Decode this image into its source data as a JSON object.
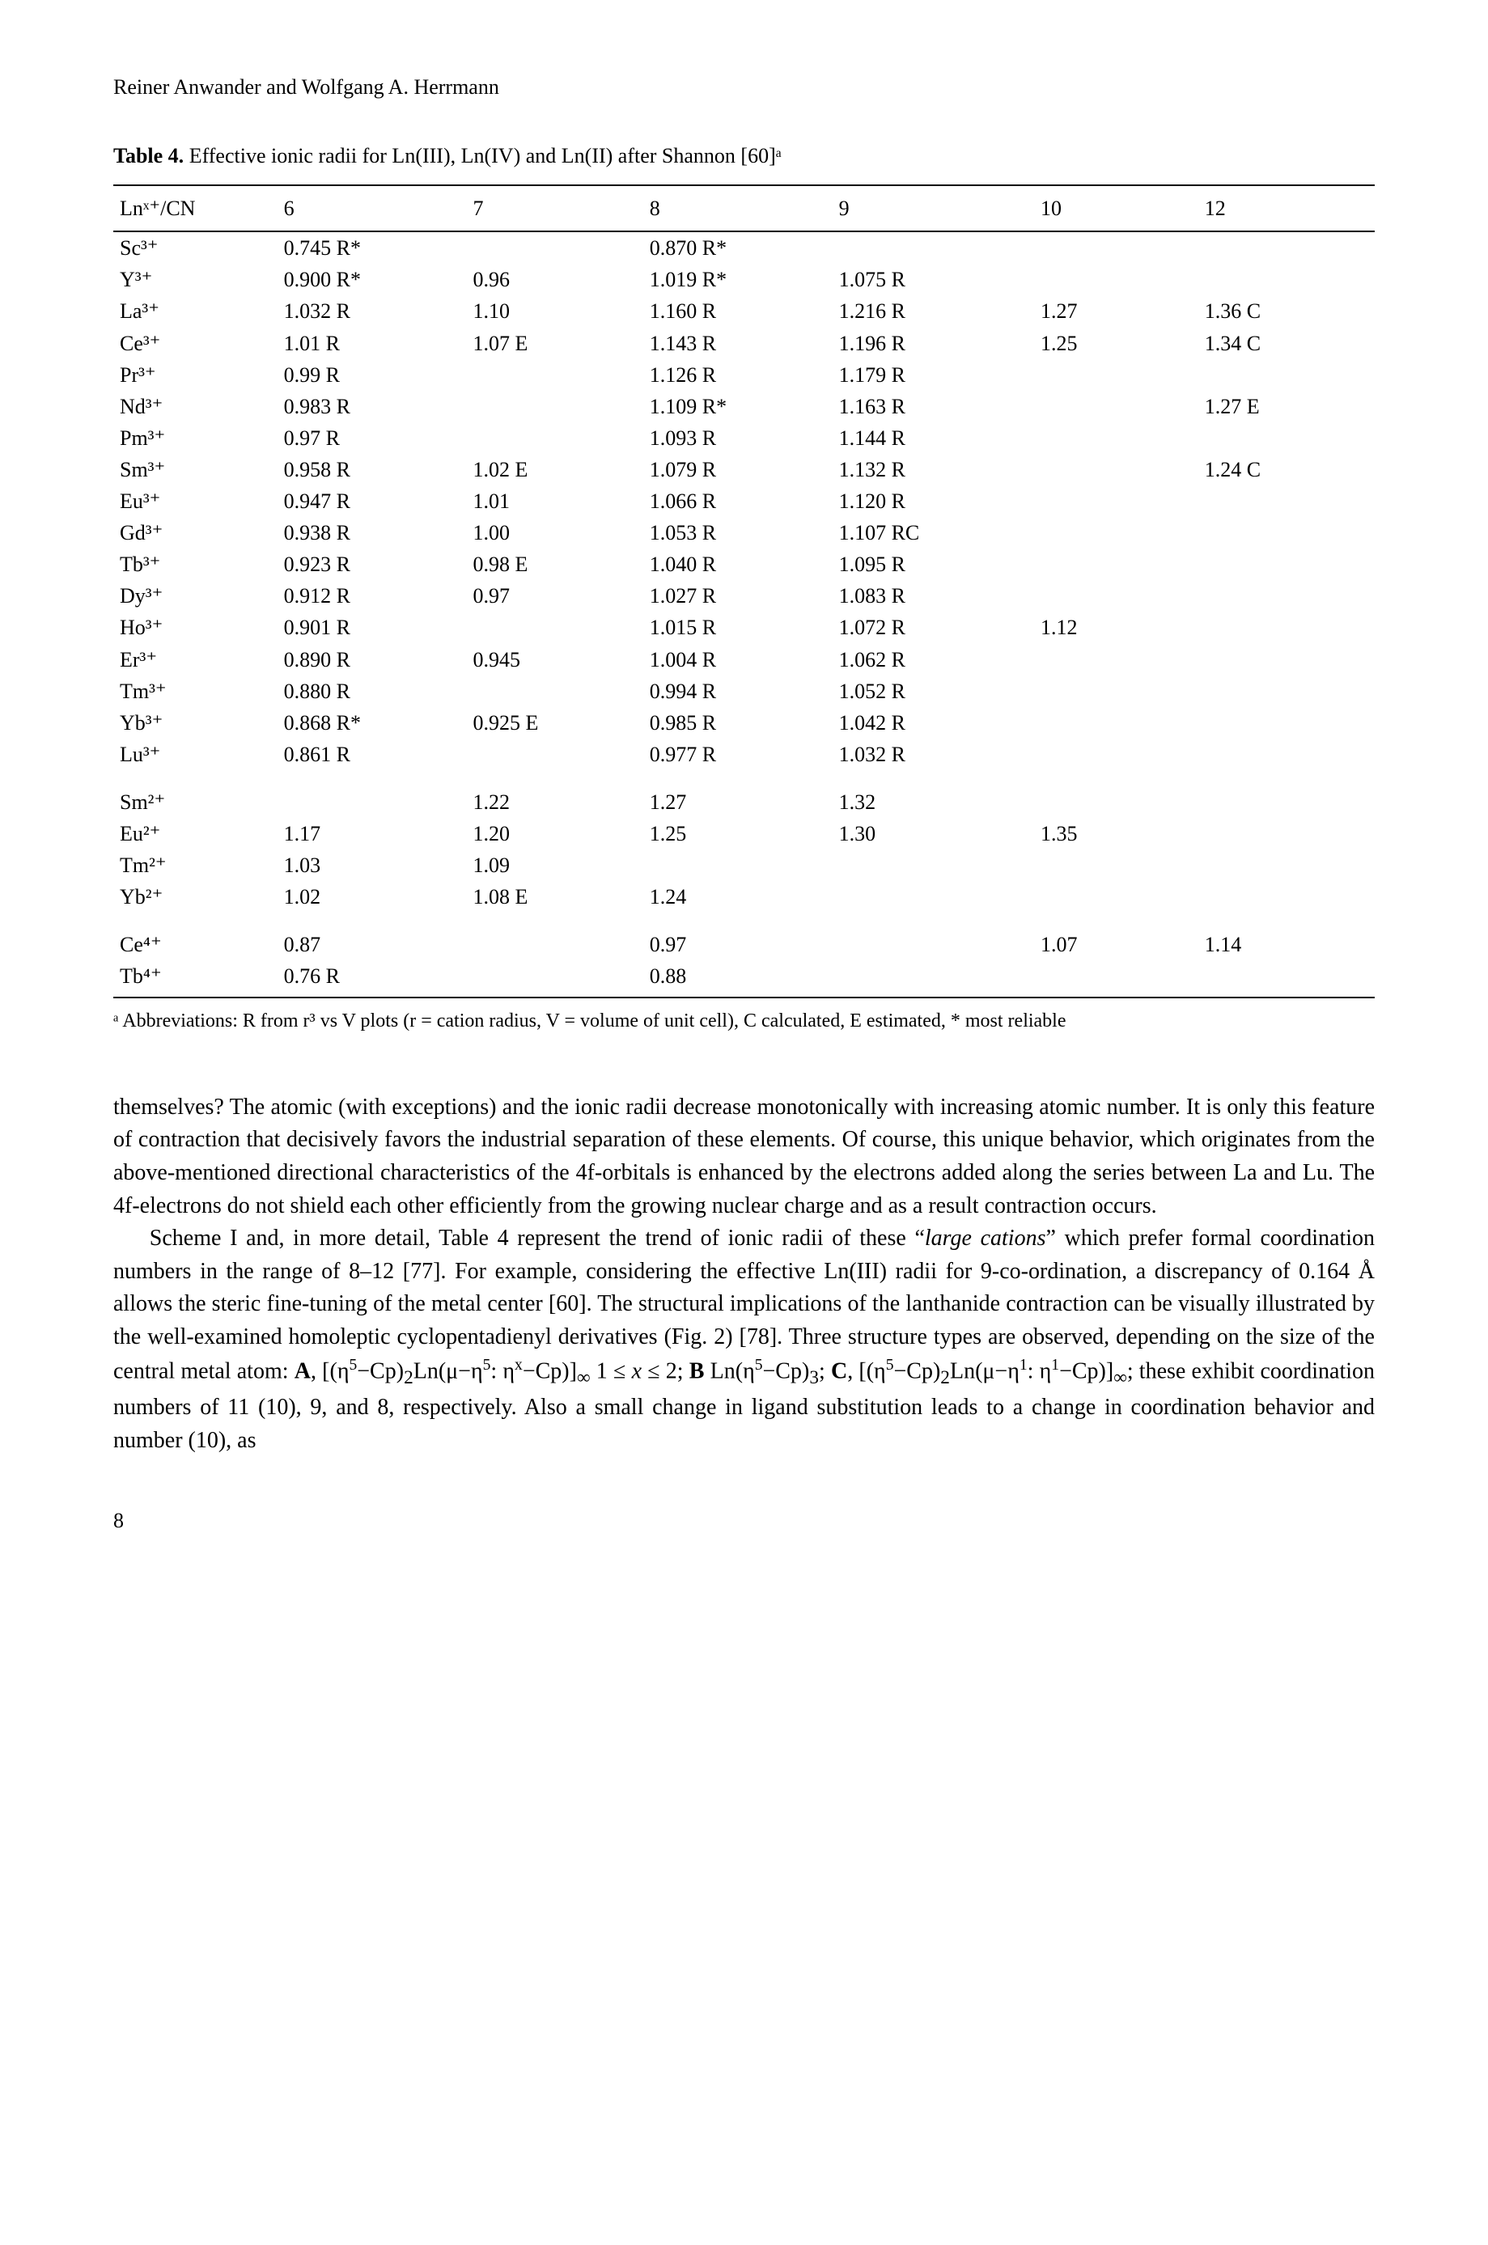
{
  "authors": "Reiner Anwander and Wolfgang A. Herrmann",
  "table": {
    "caption_label": "Table 4.",
    "caption_text": "Effective ionic radii for Ln(III), Ln(IV) and Ln(II) after Shannon [60]ᵃ",
    "columns": [
      "Lnˣ⁺/CN",
      "6",
      "7",
      "8",
      "9",
      "10",
      "12"
    ],
    "groups": [
      [
        [
          "Sc³⁺",
          "0.745 R*",
          "",
          "0.870 R*",
          "",
          "",
          ""
        ],
        [
          "Y³⁺",
          "0.900 R*",
          "0.96",
          "1.019 R*",
          "1.075 R",
          "",
          ""
        ],
        [
          "La³⁺",
          "1.032 R",
          "1.10",
          "1.160 R",
          "1.216 R",
          "1.27",
          "1.36 C"
        ],
        [
          "Ce³⁺",
          "1.01 R",
          "1.07 E",
          "1.143 R",
          "1.196 R",
          "1.25",
          "1.34 C"
        ],
        [
          "Pr³⁺",
          "0.99 R",
          "",
          "1.126 R",
          "1.179 R",
          "",
          ""
        ],
        [
          "Nd³⁺",
          "0.983 R",
          "",
          "1.109 R*",
          "1.163 R",
          "",
          "1.27 E"
        ],
        [
          "Pm³⁺",
          "0.97 R",
          "",
          "1.093 R",
          "1.144 R",
          "",
          ""
        ],
        [
          "Sm³⁺",
          "0.958 R",
          "1.02 E",
          "1.079 R",
          "1.132 R",
          "",
          "1.24 C"
        ],
        [
          "Eu³⁺",
          "0.947 R",
          "1.01",
          "1.066 R",
          "1.120 R",
          "",
          ""
        ],
        [
          "Gd³⁺",
          "0.938 R",
          "1.00",
          "1.053 R",
          "1.107 RC",
          "",
          ""
        ],
        [
          "Tb³⁺",
          "0.923 R",
          "0.98 E",
          "1.040 R",
          "1.095 R",
          "",
          ""
        ],
        [
          "Dy³⁺",
          "0.912 R",
          "0.97",
          "1.027 R",
          "1.083 R",
          "",
          ""
        ],
        [
          "Ho³⁺",
          "0.901 R",
          "",
          "1.015 R",
          "1.072 R",
          "1.12",
          ""
        ],
        [
          "Er³⁺",
          "0.890 R",
          "0.945",
          "1.004 R",
          "1.062 R",
          "",
          ""
        ],
        [
          "Tm³⁺",
          "0.880 R",
          "",
          "0.994 R",
          "1.052 R",
          "",
          ""
        ],
        [
          "Yb³⁺",
          "0.868 R*",
          "0.925 E",
          "0.985 R",
          "1.042 R",
          "",
          ""
        ],
        [
          "Lu³⁺",
          "0.861 R",
          "",
          "0.977 R",
          "1.032 R",
          "",
          ""
        ]
      ],
      [
        [
          "Sm²⁺",
          "",
          "1.22",
          "1.27",
          "1.32",
          "",
          ""
        ],
        [
          "Eu²⁺",
          "1.17",
          "1.20",
          "1.25",
          "1.30",
          "1.35",
          ""
        ],
        [
          "Tm²⁺",
          "1.03",
          "1.09",
          "",
          "",
          "",
          ""
        ],
        [
          "Yb²⁺",
          "1.02",
          "1.08 E",
          "1.24",
          "",
          "",
          ""
        ]
      ],
      [
        [
          "Ce⁴⁺",
          "0.87",
          "",
          "0.97",
          "",
          "1.07",
          "1.14"
        ],
        [
          "Tb⁴⁺",
          "0.76 R",
          "",
          "0.88",
          "",
          "",
          ""
        ]
      ]
    ],
    "footnote": "ᵃ Abbreviations: R from r³ vs V plots (r = cation radius, V = volume of unit cell), C calculated, E estimated, * most reliable"
  },
  "paragraphs": {
    "p1": "themselves? The atomic (with exceptions) and the ionic radii decrease monotonically with increasing atomic number. It is only this feature of contraction that decisively favors the industrial separation of these elements. Of course, this unique behavior, which originates from the above-mentioned directional characteristics of the 4f-orbitals is enhanced by the electrons added along the series between La and Lu. The 4f-electrons do not shield each other efficiently from the growing nuclear charge and as a result contraction occurs."
  },
  "page_number": "8"
}
